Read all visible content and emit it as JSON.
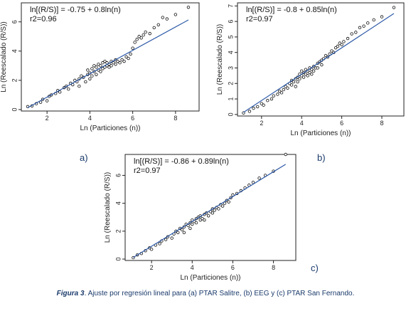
{
  "caption": {
    "figure_label": "Figura 3",
    "text": ". Ajuste por regresión lineal para (a) PTAR Salitre, (b) EEG y (c) PTAR San Fernando."
  },
  "colors": {
    "fit_line": "#2d5aa8",
    "points": "#111111",
    "panel_label": "#1a3a6b"
  },
  "chart_data": [
    {
      "type": "scatter",
      "panel": "a)",
      "equation": "ln[(R/S)] = -0.75 + 0.8ln(n)",
      "r2": "r2=0.96",
      "xlabel": "Ln (Particiones (n))",
      "ylabel": "Ln (Reescalado (R/S))",
      "xlim": [
        0.8,
        9.1
      ],
      "ylim": [
        -0.1,
        7.3
      ],
      "xticks": [
        2,
        4,
        6,
        8
      ],
      "yticks": [
        0,
        2,
        4,
        6
      ],
      "fit": {
        "intercept": -0.75,
        "slope": 0.8,
        "x_range": [
          1.1,
          8.6
        ]
      },
      "points": [
        [
          1.1,
          0.2
        ],
        [
          1.3,
          0.25
        ],
        [
          1.5,
          0.4
        ],
        [
          1.7,
          0.5
        ],
        [
          1.8,
          0.7
        ],
        [
          2.0,
          0.6
        ],
        [
          2.1,
          0.9
        ],
        [
          2.2,
          1.0
        ],
        [
          2.4,
          1.1
        ],
        [
          2.5,
          1.3
        ],
        [
          2.6,
          1.2
        ],
        [
          2.8,
          1.5
        ],
        [
          2.9,
          1.6
        ],
        [
          3.0,
          1.4
        ],
        [
          3.1,
          1.8
        ],
        [
          3.2,
          1.7
        ],
        [
          3.3,
          2.0
        ],
        [
          3.4,
          1.9
        ],
        [
          3.5,
          2.1
        ],
        [
          3.5,
          1.6
        ],
        [
          3.6,
          2.3
        ],
        [
          3.7,
          2.2
        ],
        [
          3.8,
          1.9
        ],
        [
          3.9,
          2.4
        ],
        [
          3.9,
          2.7
        ],
        [
          4.0,
          2.5
        ],
        [
          4.0,
          2.1
        ],
        [
          4.1,
          2.8
        ],
        [
          4.1,
          2.3
        ],
        [
          4.2,
          2.6
        ],
        [
          4.2,
          3.0
        ],
        [
          4.3,
          2.4
        ],
        [
          4.3,
          2.9
        ],
        [
          4.4,
          2.7
        ],
        [
          4.4,
          3.1
        ],
        [
          4.5,
          2.6
        ],
        [
          4.5,
          3.0
        ],
        [
          4.6,
          2.8
        ],
        [
          4.6,
          3.2
        ],
        [
          4.7,
          2.9
        ],
        [
          4.7,
          3.3
        ],
        [
          4.8,
          3.0
        ],
        [
          4.8,
          3.2
        ],
        [
          4.9,
          3.1
        ],
        [
          4.9,
          2.9
        ],
        [
          5.0,
          3.3
        ],
        [
          5.0,
          3.0
        ],
        [
          5.1,
          3.2
        ],
        [
          5.2,
          3.4
        ],
        [
          5.2,
          3.1
        ],
        [
          5.3,
          3.3
        ],
        [
          5.4,
          3.2
        ],
        [
          5.5,
          3.4
        ],
        [
          5.6,
          3.3
        ],
        [
          5.7,
          3.6
        ],
        [
          5.8,
          3.5
        ],
        [
          5.9,
          3.8
        ],
        [
          6.0,
          4.2
        ],
        [
          6.1,
          4.6
        ],
        [
          6.2,
          4.8
        ],
        [
          6.3,
          5.0
        ],
        [
          6.4,
          4.9
        ],
        [
          6.5,
          5.1
        ],
        [
          6.6,
          5.3
        ],
        [
          6.8,
          5.2
        ],
        [
          7.0,
          5.6
        ],
        [
          7.2,
          5.8
        ],
        [
          7.4,
          6.3
        ],
        [
          7.6,
          6.2
        ],
        [
          8.0,
          6.5
        ],
        [
          8.6,
          7.0
        ]
      ]
    },
    {
      "type": "scatter",
      "panel": "b)",
      "equation": "ln[(R/S)] = -0.8 + 0.85ln(n)",
      "r2": "r2=0.97",
      "xlabel": "Ln (Particiones (n))",
      "ylabel": "Ln (Reescalado (R/S))",
      "xlim": [
        0.8,
        9.1
      ],
      "ylim": [
        -0.1,
        7.2
      ],
      "xticks": [
        2,
        4,
        6,
        8
      ],
      "yticks": [
        0,
        1,
        2,
        3,
        4,
        5,
        6,
        7
      ],
      "fit": {
        "intercept": -0.8,
        "slope": 0.85,
        "x_range": [
          1.1,
          8.6
        ]
      },
      "points": [
        [
          1.1,
          0.1
        ],
        [
          1.4,
          0.2
        ],
        [
          1.6,
          0.4
        ],
        [
          1.8,
          0.5
        ],
        [
          2.0,
          0.7
        ],
        [
          2.1,
          0.6
        ],
        [
          2.3,
          0.9
        ],
        [
          2.5,
          1.0
        ],
        [
          2.6,
          1.2
        ],
        [
          2.8,
          1.3
        ],
        [
          2.9,
          1.5
        ],
        [
          3.0,
          1.4
        ],
        [
          3.1,
          1.6
        ],
        [
          3.2,
          1.8
        ],
        [
          3.3,
          1.7
        ],
        [
          3.4,
          2.0
        ],
        [
          3.5,
          1.9
        ],
        [
          3.5,
          2.2
        ],
        [
          3.6,
          2.1
        ],
        [
          3.7,
          2.3
        ],
        [
          3.7,
          1.8
        ],
        [
          3.8,
          2.4
        ],
        [
          3.8,
          2.1
        ],
        [
          3.9,
          2.6
        ],
        [
          3.9,
          2.3
        ],
        [
          4.0,
          2.5
        ],
        [
          4.0,
          2.8
        ],
        [
          4.1,
          2.4
        ],
        [
          4.1,
          2.7
        ],
        [
          4.2,
          2.6
        ],
        [
          4.2,
          2.9
        ],
        [
          4.3,
          2.5
        ],
        [
          4.3,
          2.8
        ],
        [
          4.4,
          2.7
        ],
        [
          4.4,
          3.0
        ],
        [
          4.5,
          2.9
        ],
        [
          4.5,
          2.6
        ],
        [
          4.6,
          3.1
        ],
        [
          4.6,
          2.8
        ],
        [
          4.7,
          3.0
        ],
        [
          4.8,
          3.3
        ],
        [
          4.8,
          3.0
        ],
        [
          4.9,
          3.4
        ],
        [
          5.0,
          3.5
        ],
        [
          5.0,
          3.2
        ],
        [
          5.1,
          3.6
        ],
        [
          5.2,
          3.8
        ],
        [
          5.3,
          3.7
        ],
        [
          5.4,
          3.9
        ],
        [
          5.5,
          4.1
        ],
        [
          5.6,
          4.0
        ],
        [
          5.7,
          4.3
        ],
        [
          5.8,
          4.4
        ],
        [
          5.9,
          4.6
        ],
        [
          6.0,
          4.5
        ],
        [
          6.1,
          4.7
        ],
        [
          6.3,
          4.9
        ],
        [
          6.5,
          5.2
        ],
        [
          6.7,
          5.3
        ],
        [
          6.9,
          5.6
        ],
        [
          7.1,
          5.7
        ],
        [
          7.3,
          5.9
        ],
        [
          7.6,
          6.1
        ],
        [
          8.0,
          6.3
        ],
        [
          8.6,
          6.9
        ]
      ]
    },
    {
      "type": "scatter",
      "panel": "c)",
      "equation": "ln[(R/S)] = -0.86 + 0.89ln(n)",
      "r2": "r2=0.97",
      "xlabel": "Ln (Particiones (n))",
      "ylabel": "Ln (Reescalado (R/S))",
      "xlim": [
        0.7,
        9.1
      ],
      "ylim": [
        -0.1,
        7.5
      ],
      "xticks": [
        2,
        4,
        6,
        8
      ],
      "yticks": [
        0,
        2,
        4,
        6
      ],
      "fit": {
        "intercept": -0.86,
        "slope": 0.89,
        "x_range": [
          1.1,
          8.6
        ]
      },
      "points": [
        [
          1.1,
          0.1
        ],
        [
          1.3,
          0.3
        ],
        [
          1.5,
          0.4
        ],
        [
          1.7,
          0.6
        ],
        [
          1.9,
          0.8
        ],
        [
          2.0,
          0.7
        ],
        [
          2.2,
          1.0
        ],
        [
          2.4,
          1.1
        ],
        [
          2.5,
          1.3
        ],
        [
          2.7,
          1.4
        ],
        [
          2.8,
          1.6
        ],
        [
          3.0,
          1.5
        ],
        [
          3.1,
          1.8
        ],
        [
          3.2,
          2.0
        ],
        [
          3.3,
          1.9
        ],
        [
          3.4,
          2.2
        ],
        [
          3.5,
          2.1
        ],
        [
          3.6,
          2.3
        ],
        [
          3.6,
          1.9
        ],
        [
          3.7,
          2.5
        ],
        [
          3.8,
          2.4
        ],
        [
          3.9,
          2.6
        ],
        [
          3.9,
          2.2
        ],
        [
          4.0,
          2.8
        ],
        [
          4.0,
          2.5
        ],
        [
          4.1,
          2.7
        ],
        [
          4.2,
          2.9
        ],
        [
          4.2,
          2.6
        ],
        [
          4.3,
          3.0
        ],
        [
          4.4,
          2.8
        ],
        [
          4.4,
          3.1
        ],
        [
          4.5,
          2.9
        ],
        [
          4.6,
          3.2
        ],
        [
          4.6,
          2.8
        ],
        [
          4.7,
          3.3
        ],
        [
          4.8,
          3.1
        ],
        [
          4.9,
          3.4
        ],
        [
          5.0,
          3.3
        ],
        [
          5.0,
          3.6
        ],
        [
          5.1,
          3.5
        ],
        [
          5.2,
          3.7
        ],
        [
          5.3,
          3.6
        ],
        [
          5.4,
          3.9
        ],
        [
          5.5,
          3.8
        ],
        [
          5.6,
          4.0
        ],
        [
          5.7,
          4.2
        ],
        [
          5.8,
          4.1
        ],
        [
          5.9,
          4.4
        ],
        [
          6.0,
          4.6
        ],
        [
          6.2,
          4.7
        ],
        [
          6.4,
          4.9
        ],
        [
          6.6,
          5.1
        ],
        [
          6.8,
          5.3
        ],
        [
          7.0,
          5.5
        ],
        [
          7.3,
          5.8
        ],
        [
          7.6,
          6.0
        ],
        [
          8.0,
          6.3
        ],
        [
          8.6,
          7.5
        ]
      ]
    }
  ]
}
